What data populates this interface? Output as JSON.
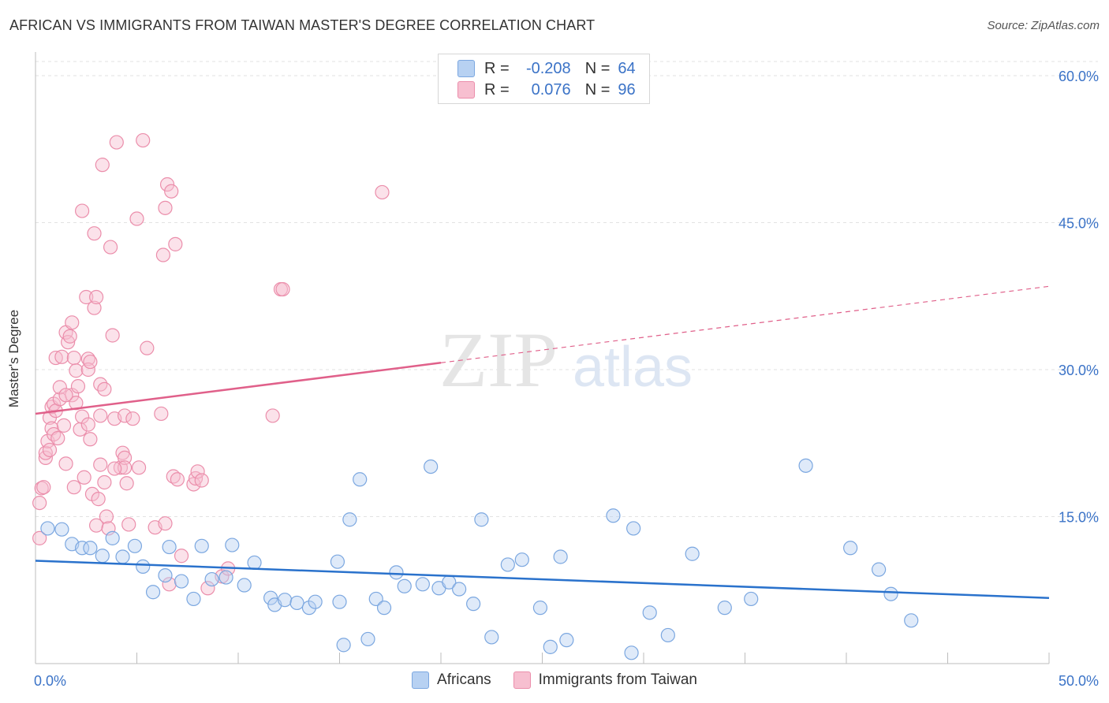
{
  "title": "AFRICAN VS IMMIGRANTS FROM TAIWAN MASTER'S DEGREE CORRELATION CHART",
  "source": "Source: ZipAtlas.com",
  "watermark": {
    "zip": "ZIP",
    "atlas": "atlas"
  },
  "legend_top": {
    "rows": [
      {
        "r_label": "R =",
        "r_value": "-0.208",
        "n_label": "N =",
        "n_value": "64"
      },
      {
        "r_label": "R =",
        "r_value": "0.076",
        "n_label": "N =",
        "n_value": "96"
      }
    ]
  },
  "legend_bottom": {
    "items": [
      "Africans",
      "Immigrants from Taiwan"
    ]
  },
  "colors": {
    "africans_fill": "#b7d1f2",
    "africans_stroke": "#7ba7e0",
    "africans_line": "#2a72cc",
    "taiwan_fill": "#f7bfd0",
    "taiwan_stroke": "#eb8eab",
    "taiwan_line": "#e0608a",
    "axis_label": "#3b73c7",
    "grid": "#e2e2e2"
  },
  "chart_data": {
    "type": "scatter",
    "title": "AFRICAN VS IMMIGRANTS FROM TAIWAN MASTER'S DEGREE CORRELATION CHART",
    "xlabel": "",
    "ylabel": "Master's Degree",
    "xlim": [
      0,
      50
    ],
    "ylim": [
      0,
      63
    ],
    "x_ticks": [
      "0.0%",
      "50.0%"
    ],
    "y_ticks": [
      {
        "value": 15,
        "label": "15.0%"
      },
      {
        "value": 30,
        "label": "30.0%"
      },
      {
        "value": 45,
        "label": "45.0%"
      },
      {
        "value": 60,
        "label": "60.0%"
      }
    ],
    "grid": true,
    "legend_position": "top-center",
    "series": [
      {
        "name": "Africans",
        "R": -0.208,
        "N": 64,
        "trend": {
          "x0": 0,
          "y0": 10.5,
          "x1": 50,
          "y1": 6.7
        },
        "points": [
          [
            0.6,
            13.8
          ],
          [
            1.3,
            13.7
          ],
          [
            1.8,
            12.2
          ],
          [
            2.3,
            11.8
          ],
          [
            2.7,
            11.8
          ],
          [
            3.3,
            11.0
          ],
          [
            3.8,
            12.8
          ],
          [
            4.3,
            10.9
          ],
          [
            4.9,
            12.0
          ],
          [
            5.3,
            9.9
          ],
          [
            5.8,
            7.3
          ],
          [
            6.4,
            9.0
          ],
          [
            6.6,
            11.9
          ],
          [
            7.2,
            8.4
          ],
          [
            7.8,
            6.6
          ],
          [
            8.2,
            12.0
          ],
          [
            8.7,
            8.6
          ],
          [
            9.4,
            8.8
          ],
          [
            9.7,
            12.1
          ],
          [
            10.3,
            8.0
          ],
          [
            10.8,
            10.3
          ],
          [
            11.6,
            6.7
          ],
          [
            11.8,
            6.0
          ],
          [
            12.3,
            6.5
          ],
          [
            12.9,
            6.2
          ],
          [
            13.5,
            5.7
          ],
          [
            13.8,
            6.3
          ],
          [
            14.9,
            10.4
          ],
          [
            15.0,
            6.3
          ],
          [
            15.5,
            14.7
          ],
          [
            15.2,
            1.9
          ],
          [
            16.0,
            18.8
          ],
          [
            16.4,
            2.5
          ],
          [
            16.8,
            6.6
          ],
          [
            17.2,
            5.7
          ],
          [
            17.8,
            9.3
          ],
          [
            18.2,
            7.9
          ],
          [
            19.1,
            8.1
          ],
          [
            19.5,
            20.1
          ],
          [
            19.9,
            7.7
          ],
          [
            20.4,
            8.3
          ],
          [
            20.9,
            7.6
          ],
          [
            21.6,
            6.1
          ],
          [
            22.0,
            14.7
          ],
          [
            22.5,
            2.7
          ],
          [
            23.3,
            10.1
          ],
          [
            24.0,
            10.6
          ],
          [
            24.9,
            5.7
          ],
          [
            25.4,
            1.7
          ],
          [
            25.9,
            10.9
          ],
          [
            26.2,
            2.4
          ],
          [
            28.5,
            15.1
          ],
          [
            29.4,
            1.1
          ],
          [
            29.5,
            13.8
          ],
          [
            30.3,
            5.2
          ],
          [
            31.2,
            2.9
          ],
          [
            32.4,
            11.2
          ],
          [
            34.0,
            5.7
          ],
          [
            35.3,
            6.6
          ],
          [
            38.0,
            20.2
          ],
          [
            40.2,
            11.8
          ],
          [
            41.6,
            9.6
          ],
          [
            42.2,
            7.1
          ],
          [
            43.2,
            4.4
          ]
        ]
      },
      {
        "name": "Immigrants from Taiwan",
        "R": 0.076,
        "N": 96,
        "trend": {
          "x0": 0,
          "y0": 25.5,
          "x1": 50,
          "y1": 38.5,
          "solid_until_x": 20
        },
        "points": [
          [
            0.2,
            16.4
          ],
          [
            0.2,
            12.8
          ],
          [
            0.3,
            17.9
          ],
          [
            0.4,
            18.0
          ],
          [
            0.5,
            21.0
          ],
          [
            0.5,
            21.5
          ],
          [
            0.6,
            22.7
          ],
          [
            0.7,
            25.1
          ],
          [
            0.8,
            24.0
          ],
          [
            0.8,
            26.2
          ],
          [
            0.9,
            23.4
          ],
          [
            0.9,
            26.5
          ],
          [
            1.0,
            25.8
          ],
          [
            1.0,
            31.2
          ],
          [
            1.1,
            23.0
          ],
          [
            1.2,
            27.0
          ],
          [
            1.2,
            28.2
          ],
          [
            1.4,
            24.3
          ],
          [
            1.3,
            31.3
          ],
          [
            1.5,
            20.4
          ],
          [
            1.5,
            33.8
          ],
          [
            1.6,
            32.8
          ],
          [
            1.7,
            33.4
          ],
          [
            1.8,
            34.8
          ],
          [
            1.8,
            27.4
          ],
          [
            1.9,
            31.2
          ],
          [
            2.0,
            29.9
          ],
          [
            2.0,
            26.6
          ],
          [
            2.1,
            28.3
          ],
          [
            2.2,
            23.9
          ],
          [
            2.3,
            25.2
          ],
          [
            2.3,
            46.2
          ],
          [
            2.4,
            19.0
          ],
          [
            2.5,
            37.4
          ],
          [
            2.6,
            31.1
          ],
          [
            2.6,
            30.0
          ],
          [
            2.7,
            30.8
          ],
          [
            2.7,
            22.9
          ],
          [
            2.8,
            17.3
          ],
          [
            2.9,
            36.3
          ],
          [
            2.9,
            43.9
          ],
          [
            3.0,
            14.1
          ],
          [
            3.0,
            37.4
          ],
          [
            3.1,
            16.8
          ],
          [
            3.2,
            20.3
          ],
          [
            3.2,
            28.5
          ],
          [
            3.2,
            25.3
          ],
          [
            3.3,
            50.9
          ],
          [
            3.4,
            28.0
          ],
          [
            3.4,
            18.5
          ],
          [
            3.5,
            15.0
          ],
          [
            3.6,
            13.8
          ],
          [
            3.7,
            42.5
          ],
          [
            3.8,
            33.5
          ],
          [
            3.9,
            25.0
          ],
          [
            4.0,
            53.2
          ],
          [
            4.2,
            20.0
          ],
          [
            4.3,
            21.5
          ],
          [
            4.4,
            21.0
          ],
          [
            4.4,
            20.0
          ],
          [
            4.4,
            25.3
          ],
          [
            4.5,
            18.4
          ],
          [
            4.6,
            14.2
          ],
          [
            4.8,
            25.0
          ],
          [
            5.0,
            45.4
          ],
          [
            5.1,
            20.0
          ],
          [
            5.3,
            53.4
          ],
          [
            5.5,
            32.2
          ],
          [
            5.9,
            13.9
          ],
          [
            6.2,
            25.5
          ],
          [
            6.3,
            41.7
          ],
          [
            6.4,
            46.5
          ],
          [
            6.4,
            14.3
          ],
          [
            6.5,
            48.9
          ],
          [
            6.6,
            8.1
          ],
          [
            6.7,
            48.2
          ],
          [
            6.8,
            19.1
          ],
          [
            6.9,
            42.8
          ],
          [
            7.0,
            18.8
          ],
          [
            7.2,
            11.0
          ],
          [
            7.8,
            18.3
          ],
          [
            7.9,
            18.9
          ],
          [
            8.0,
            19.6
          ],
          [
            8.2,
            18.7
          ],
          [
            8.5,
            7.7
          ],
          [
            9.2,
            8.9
          ],
          [
            9.5,
            9.7
          ],
          [
            11.7,
            25.3
          ],
          [
            12.1,
            38.2
          ],
          [
            12.2,
            38.2
          ],
          [
            17.1,
            48.1
          ],
          [
            1.9,
            18.0
          ],
          [
            2.6,
            24.4
          ],
          [
            0.7,
            21.8
          ],
          [
            1.5,
            27.4
          ],
          [
            3.9,
            19.9
          ]
        ]
      }
    ]
  }
}
